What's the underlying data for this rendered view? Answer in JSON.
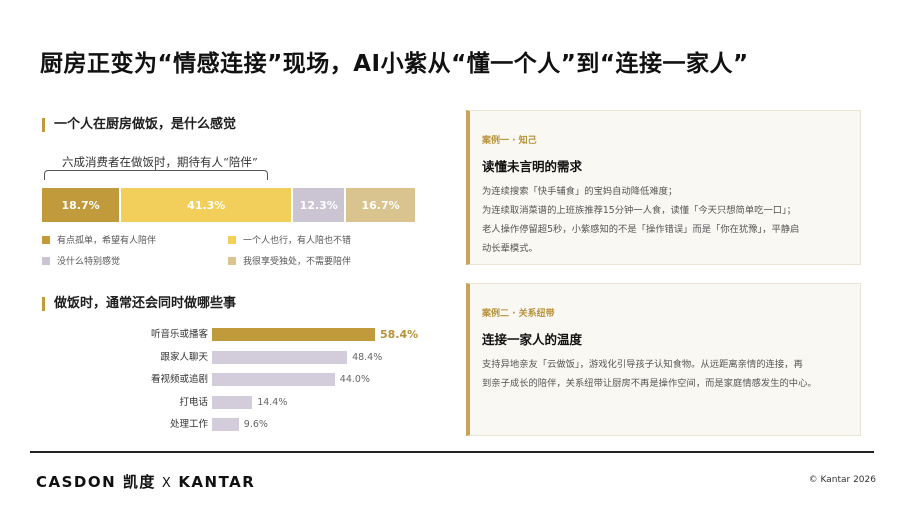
{
  "title": "厨房正变为“情感连接”现场，AI小紫从“懂一个人”到“连接一家人”",
  "section1": {
    "heading": "一个人在厨房做饭，是什么感觉",
    "annotation": "六成消费者在做饭时，期待有人“陪伴”",
    "segments": [
      {
        "label": "18.7%",
        "value": 18.7,
        "color": "#c19a3b",
        "legend": "有点孤单，希望有人陪伴"
      },
      {
        "label": "41.3%",
        "value": 41.3,
        "color": "#f2cf5b",
        "legend": "一个人也行，有人陪也不错"
      },
      {
        "label": "12.3%",
        "value": 12.3,
        "color": "#cbc4d3",
        "legend": "没什么特别感觉"
      },
      {
        "label": "16.7%",
        "value": 16.7,
        "color": "#d9c48f",
        "legend": "我很享受独处，不需要陪伴"
      }
    ]
  },
  "section2": {
    "heading": "做饭时，通常还会同时做哪些事",
    "items": [
      {
        "label": "听音乐或播客",
        "value": 58.4,
        "value_label": "58.4%",
        "highlight": true
      },
      {
        "label": "跟家人聊天",
        "value": 48.4,
        "value_label": "48.4%",
        "highlight": false
      },
      {
        "label": "看视频或追剧",
        "value": 44.0,
        "value_label": "44.0%",
        "highlight": false
      },
      {
        "label": "打电话",
        "value": 14.4,
        "value_label": "14.4%",
        "highlight": false
      },
      {
        "label": "处理工作",
        "value": 9.6,
        "value_label": "9.6%",
        "highlight": false
      }
    ],
    "colors": {
      "highlight": "#c19a3b",
      "normal": "#d2ccdb"
    }
  },
  "cards": [
    {
      "tag": "案例一 · 知己",
      "title": "读懂未言明的需求",
      "lines": [
        "为连续搜索「快手辅食」的宝妈自动降低难度；",
        "为连续取消菜谱的上班族推荐15分钟一人食，读懂「今天只想简单吃一口」；",
        "老人操作停留超5秒，小紫感知的不是「操作错误」而是「你在犹豫」，平静启",
        "动长辈模式。"
      ]
    },
    {
      "tag": "案例二 · 关系纽带",
      "title": "连接一家人的温度",
      "lines": [
        "支持异地亲友「云做饭」，游戏化引导孩子认知食物。从远距离亲情的连接，再",
        "到亲子成长的陪伴，关系纽带让厨房不再是操作空间，而是家庭情感发生的中心。"
      ]
    }
  ],
  "footer": {
    "brand1": "CASDON 凯度",
    "separator": "X",
    "brand2": "KANTAR",
    "copyright": "© Kantar 2026"
  }
}
